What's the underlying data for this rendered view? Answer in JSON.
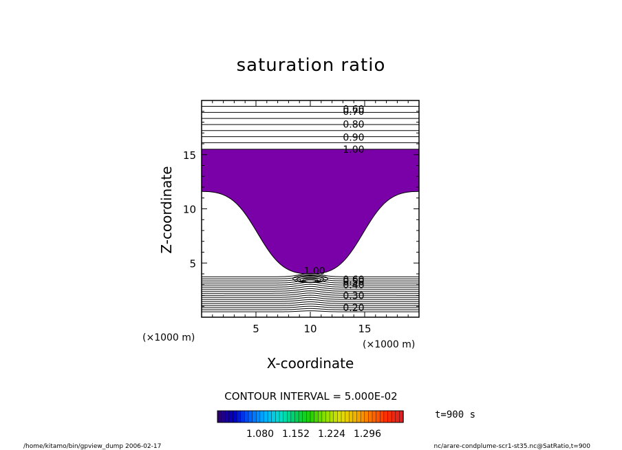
{
  "chart_data": {
    "type": "contour",
    "title": "saturation ratio",
    "xlabel": "X-coordinate",
    "ylabel": "Z-coordinate",
    "x_unit": "(×1000 m)",
    "y_unit": "(×1000 m)",
    "xlim": [
      0,
      20
    ],
    "ylim": [
      0,
      20
    ],
    "x_ticks": [
      5,
      10,
      15
    ],
    "y_ticks": [
      5,
      10,
      15
    ],
    "x_tick_labels": [
      "5",
      "10",
      "15"
    ],
    "y_tick_labels": [
      "5",
      "10",
      "15"
    ],
    "contour_labels": [
      "0.60",
      "0.70",
      "0.80",
      "0.90",
      "1.00",
      "1.00",
      "0.60",
      "0.50",
      "0.40",
      "0.30",
      "0.20"
    ],
    "contour_interval": "CONTOUR INTERVAL = 5.000E-02",
    "time_label": "t=900 s",
    "fill_color": "#7a00a8",
    "shaded_region": {
      "top_z": 15.5,
      "edge_z_at_x0": 11.6,
      "edge_z_at_x20": 11.6,
      "min_z": 4.0,
      "min_x": 10.0
    },
    "colorbar": {
      "tick_labels": [
        "1.080",
        "1.152",
        "1.224",
        "1.296"
      ],
      "colors": [
        "#2a0070",
        "#0000c8",
        "#0060ff",
        "#00b0ff",
        "#00e0d0",
        "#00d060",
        "#20d000",
        "#90e000",
        "#e0e000",
        "#f0b000",
        "#ff7000",
        "#ff3000",
        "#e02020"
      ]
    }
  },
  "footer": {
    "left": "/home/kitamo/bin/gpview_dump  2006-02-17",
    "right": "nc/arare-condplume-scr1-st35.nc@SatRatio,t=900"
  }
}
